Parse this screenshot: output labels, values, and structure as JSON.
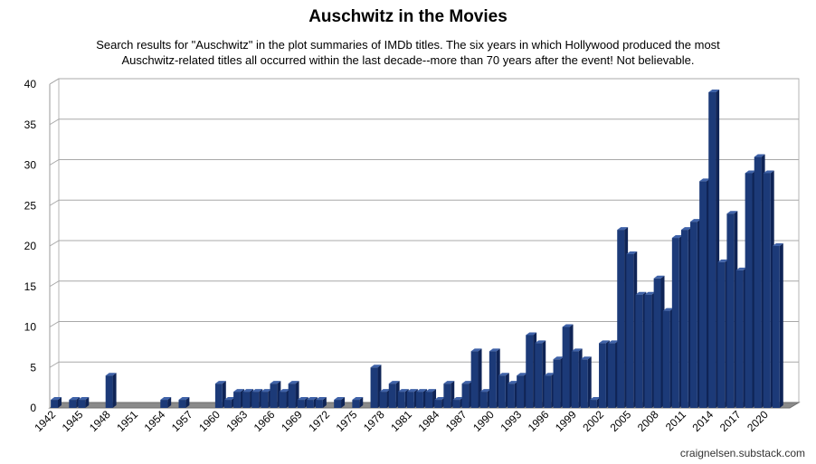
{
  "chart_data": {
    "type": "bar",
    "title": "Auschwitz in the Movies",
    "subtitle_lines": [
      "Search results for \"Auschwitz\" in the plot summaries of IMDb titles. The six years in which Hollywood produced the most",
      "Auschwitz-related titles all occurred within the last decade--more than 70 years after the event! Not believable."
    ],
    "xlabel": "",
    "ylabel": "",
    "ylim": [
      0,
      40
    ],
    "yticks": [
      0,
      5,
      10,
      15,
      20,
      25,
      30,
      35,
      40
    ],
    "grid": true,
    "legend": "none",
    "bar_color": "#1c3a78",
    "categories": [
      "1942",
      "1943",
      "1944",
      "1945",
      "1946",
      "1947",
      "1948",
      "1949",
      "1950",
      "1951",
      "1952",
      "1953",
      "1954",
      "1955",
      "1956",
      "1957",
      "1958",
      "1959",
      "1960",
      "1961",
      "1962",
      "1963",
      "1964",
      "1965",
      "1966",
      "1967",
      "1968",
      "1969",
      "1970",
      "1971",
      "1972",
      "1973",
      "1974",
      "1975",
      "1976",
      "1977",
      "1978",
      "1979",
      "1980",
      "1981",
      "1982",
      "1983",
      "1984",
      "1985",
      "1986",
      "1987",
      "1988",
      "1989",
      "1990",
      "1991",
      "1992",
      "1993",
      "1994",
      "1995",
      "1996",
      "1997",
      "1998",
      "1999",
      "2000",
      "2001",
      "2002",
      "2003",
      "2004",
      "2005",
      "2006",
      "2007",
      "2008",
      "2009",
      "2010",
      "2011",
      "2012",
      "2013",
      "2014",
      "2015",
      "2016",
      "2017",
      "2018",
      "2019",
      "2020",
      "2021",
      "2022"
    ],
    "values": [
      1,
      0,
      1,
      1,
      0,
      0,
      4,
      0,
      0,
      0,
      0,
      0,
      1,
      0,
      1,
      0,
      0,
      0,
      3,
      1,
      2,
      2,
      2,
      2,
      3,
      2,
      3,
      1,
      1,
      1,
      0,
      1,
      0,
      1,
      0,
      5,
      2,
      3,
      2,
      2,
      2,
      2,
      1,
      3,
      1,
      3,
      7,
      2,
      7,
      4,
      3,
      4,
      9,
      8,
      4,
      6,
      10,
      7,
      6,
      1,
      8,
      8,
      22,
      19,
      14,
      14,
      16,
      12,
      21,
      22,
      23,
      28,
      39,
      18,
      24,
      17,
      29,
      31,
      29,
      20,
      0
    ],
    "xtick_labels": [
      "1942",
      "1945",
      "1948",
      "1951",
      "1954",
      "1957",
      "1960",
      "1963",
      "1966",
      "1969",
      "1972",
      "1975",
      "1978",
      "1981",
      "1984",
      "1987",
      "1990",
      "1993",
      "1996",
      "1999",
      "2002",
      "2005",
      "2008",
      "2011",
      "2014",
      "2017",
      "2020"
    ]
  },
  "credit": "craignelsen.substack.com"
}
